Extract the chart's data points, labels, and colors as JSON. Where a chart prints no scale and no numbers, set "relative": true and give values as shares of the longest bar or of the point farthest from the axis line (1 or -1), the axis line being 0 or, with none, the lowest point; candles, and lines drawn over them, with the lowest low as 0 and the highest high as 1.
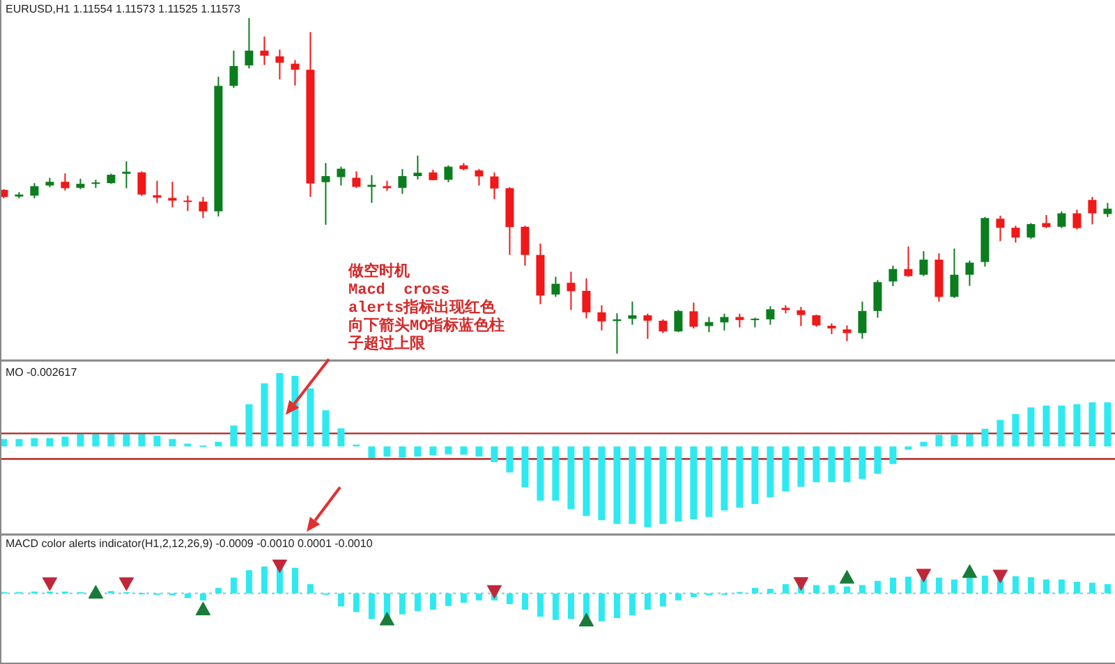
{
  "chart_data": [
    {
      "type": "candlestick",
      "title": "EURUSD,H1  1.11554 1.11573 1.11525 1.11573",
      "relative": true,
      "annotations": [
        "做空时机\nMacd  cross\nalerts指标出现红色向下箭头MO指标蓝色柱子超过上限"
      ],
      "categories": [
        null,
        null,
        null,
        null,
        null,
        null,
        null,
        null,
        null,
        null,
        null,
        null,
        null,
        null,
        null,
        null,
        null,
        null,
        null,
        null,
        null,
        null,
        null,
        null,
        null,
        null,
        null,
        null,
        null,
        null,
        null,
        null,
        null,
        null,
        null,
        null,
        null,
        null,
        null,
        null,
        null,
        null,
        null,
        null,
        null,
        null,
        null,
        null,
        null,
        null,
        null,
        null,
        null,
        null,
        null,
        null,
        null,
        null,
        null,
        null,
        null,
        null,
        null,
        null,
        null,
        null,
        null,
        null,
        null,
        null,
        null,
        null,
        null
      ],
      "ohlc": [
        [
          0.488,
          0.49,
          0.463,
          0.467
        ],
        [
          0.468,
          0.481,
          0.463,
          0.474
        ],
        [
          0.471,
          0.508,
          0.463,
          0.499
        ],
        [
          0.501,
          0.524,
          0.496,
          0.512
        ],
        [
          0.512,
          0.537,
          0.486,
          0.493
        ],
        [
          0.494,
          0.521,
          0.49,
          0.506
        ],
        [
          0.506,
          0.518,
          0.494,
          0.51
        ],
        [
          0.508,
          0.536,
          0.506,
          0.533
        ],
        [
          0.536,
          0.573,
          0.493,
          0.542
        ],
        [
          0.54,
          0.543,
          0.47,
          0.474
        ],
        [
          0.472,
          0.515,
          0.449,
          0.465
        ],
        [
          0.464,
          0.512,
          0.436,
          0.456
        ],
        [
          0.456,
          0.471,
          0.425,
          0.452
        ],
        [
          0.453,
          0.467,
          0.404,
          0.424
        ],
        [
          0.424,
          0.825,
          0.409,
          0.798
        ],
        [
          0.798,
          0.903,
          0.792,
          0.857
        ],
        [
          0.859,
          1.0,
          0.85,
          0.903
        ],
        [
          0.903,
          0.945,
          0.86,
          0.888
        ],
        [
          0.886,
          0.906,
          0.817,
          0.867
        ],
        [
          0.864,
          0.875,
          0.799,
          0.846
        ],
        [
          0.846,
          0.958,
          0.467,
          0.507
        ],
        [
          0.511,
          0.568,
          0.384,
          0.529
        ],
        [
          0.526,
          0.557,
          0.501,
          0.551
        ],
        [
          0.524,
          0.543,
          0.494,
          0.497
        ],
        [
          0.497,
          0.532,
          0.449,
          0.503
        ],
        [
          0.499,
          0.515,
          0.485,
          0.493
        ],
        [
          0.494,
          0.55,
          0.476,
          0.529
        ],
        [
          0.529,
          0.59,
          0.519,
          0.539
        ],
        [
          0.54,
          0.548,
          0.517,
          0.517
        ],
        [
          0.518,
          0.561,
          0.511,
          0.557
        ],
        [
          0.561,
          0.568,
          0.546,
          0.55
        ],
        [
          0.546,
          0.55,
          0.501,
          0.528
        ],
        [
          0.528,
          0.54,
          0.46,
          0.492
        ],
        [
          0.493,
          0.496,
          0.294,
          0.377
        ],
        [
          0.378,
          0.381,
          0.262,
          0.294
        ],
        [
          0.294,
          0.328,
          0.147,
          0.173
        ],
        [
          0.176,
          0.229,
          0.169,
          0.208
        ],
        [
          0.211,
          0.244,
          0.13,
          0.186
        ],
        [
          0.187,
          0.224,
          0.105,
          0.123
        ],
        [
          0.123,
          0.144,
          0.069,
          0.096
        ],
        [
          0.097,
          0.12,
          0,
          0.102
        ],
        [
          0.104,
          0.155,
          0.086,
          0.114
        ],
        [
          0.114,
          0.119,
          0.044,
          0.098
        ],
        [
          0.098,
          0.102,
          0.061,
          0.066
        ],
        [
          0.066,
          0.13,
          0.064,
          0.127
        ],
        [
          0.126,
          0.152,
          0.075,
          0.08
        ],
        [
          0.082,
          0.109,
          0.064,
          0.094
        ],
        [
          0.093,
          0.119,
          0.069,
          0.109
        ],
        [
          0.109,
          0.119,
          0.078,
          0.1
        ],
        [
          0.1,
          0.107,
          0.078,
          0.104
        ],
        [
          0.102,
          0.141,
          0.086,
          0.132
        ],
        [
          0.136,
          0.144,
          0.12,
          0.13
        ],
        [
          0.129,
          0.139,
          0.082,
          0.115
        ],
        [
          0.114,
          0.116,
          0.08,
          0.084
        ],
        [
          0.083,
          0.09,
          0.058,
          0.075
        ],
        [
          0.072,
          0.084,
          0.037,
          0.061
        ],
        [
          0.061,
          0.155,
          0.044,
          0.127
        ],
        [
          0.127,
          0.219,
          0.107,
          0.213
        ],
        [
          0.215,
          0.262,
          0.201,
          0.252
        ],
        [
          0.252,
          0.319,
          0.229,
          0.231
        ],
        [
          0.235,
          0.305,
          0.231,
          0.28
        ],
        [
          0.28,
          0.299,
          0.155,
          0.169
        ],
        [
          0.169,
          0.313,
          0.166,
          0.235
        ],
        [
          0.235,
          0.277,
          0.202,
          0.271
        ],
        [
          0.273,
          0.407,
          0.259,
          0.404
        ],
        [
          0.402,
          0.411,
          0.335,
          0.375
        ],
        [
          0.375,
          0.381,
          0.331,
          0.346
        ],
        [
          0.346,
          0.389,
          0.342,
          0.386
        ],
        [
          0.389,
          0.413,
          0.374,
          0.377
        ],
        [
          0.378,
          0.424,
          0.374,
          0.418
        ],
        [
          0.418,
          0.429,
          0.37,
          0.374
        ],
        [
          0.458,
          0.467,
          0.385,
          0.418
        ],
        [
          0.416,
          0.449,
          0.407,
          0.432
        ]
      ],
      "colors": [
        "#f01818",
        "#0b7d1f",
        "#0b7d1f",
        "#0b7d1f",
        "#f01818",
        "#0b7d1f",
        "#0b7d1f",
        "#0b7d1f",
        "#0b7d1f",
        "#f01818",
        "#f01818",
        "#f01818",
        "#f01818",
        "#f01818",
        "#0b7d1f",
        "#0b7d1f",
        "#0b7d1f",
        "#f01818",
        "#f01818",
        "#f01818",
        "#f01818",
        "#0b7d1f",
        "#0b7d1f",
        "#f01818",
        "#0b7d1f",
        "#f01818",
        "#0b7d1f",
        "#0b7d1f",
        "#f01818",
        "#0b7d1f",
        "#f01818",
        "#f01818",
        "#f01818",
        "#f01818",
        "#f01818",
        "#f01818",
        "#0b7d1f",
        "#f01818",
        "#f01818",
        "#f01818",
        "#0b7d1f",
        "#0b7d1f",
        "#f01818",
        "#f01818",
        "#0b7d1f",
        "#f01818",
        "#0b7d1f",
        "#0b7d1f",
        "#f01818",
        "#0b7d1f",
        "#0b7d1f",
        "#f01818",
        "#f01818",
        "#f01818",
        "#f01818",
        "#f01818",
        "#0b7d1f",
        "#0b7d1f",
        "#0b7d1f",
        "#f01818",
        "#0b7d1f",
        "#f01818",
        "#0b7d1f",
        "#0b7d1f",
        "#0b7d1f",
        "#f01818",
        "#f01818",
        "#0b7d1f",
        "#f01818",
        "#0b7d1f",
        "#f01818",
        "#f01818",
        "#0b7d1f"
      ]
    },
    {
      "type": "bar",
      "title": "MO -0.002617",
      "relative": true,
      "color": "#2ee9f0",
      "categories": [
        null,
        null,
        null,
        null,
        null,
        null,
        null,
        null,
        null,
        null,
        null,
        null,
        null,
        null,
        null,
        null,
        null,
        null,
        null,
        null,
        null,
        null,
        null,
        null,
        null,
        null,
        null,
        null,
        null,
        null,
        null,
        null,
        null,
        null,
        null,
        null,
        null,
        null,
        null,
        null,
        null,
        null,
        null,
        null,
        null,
        null,
        null,
        null,
        null,
        null,
        null,
        null,
        null,
        null,
        null,
        null,
        null,
        null,
        null,
        null,
        null,
        null,
        null,
        null,
        null,
        null,
        null,
        null,
        null,
        null,
        null,
        null,
        null
      ],
      "values": [
        0.092,
        0.092,
        0.103,
        0.103,
        0.121,
        0.149,
        0.149,
        0.149,
        0.149,
        0.149,
        0.132,
        0.092,
        0.034,
        0.011,
        0.057,
        0.259,
        0.523,
        0.782,
        0.908,
        0.874,
        0.718,
        0.448,
        0.224,
        0.023,
        -0.144,
        -0.126,
        -0.138,
        -0.126,
        -0.109,
        -0.098,
        -0.103,
        -0.126,
        -0.195,
        -0.322,
        -0.506,
        -0.672,
        -0.672,
        -0.776,
        -0.862,
        -0.914,
        -0.96,
        -0.96,
        -1,
        -0.96,
        -0.931,
        -0.902,
        -0.874,
        -0.793,
        -0.759,
        -0.713,
        -0.632,
        -0.557,
        -0.5,
        -0.443,
        -0.443,
        -0.443,
        -0.402,
        -0.339,
        -0.218,
        -0.04,
        0.057,
        0.144,
        0.144,
        0.149,
        0.218,
        0.328,
        0.402,
        0.483,
        0.506,
        0.506,
        0.523,
        0.546,
        0.546
      ],
      "ref_lines": [
        {
          "axis": "y",
          "value": 0.161,
          "color": "#b83a3a"
        },
        {
          "axis": "y",
          "value": -0.155,
          "color": "#b83a3a"
        }
      ]
    },
    {
      "type": "bar",
      "title": "MACD color alerts indicator(H1,2,12,26,9) -0.0009 -0.0010 0.0001 -0.0010",
      "relative": true,
      "categories": [
        null,
        null,
        null,
        null,
        null,
        null,
        null,
        null,
        null,
        null,
        null,
        null,
        null,
        null,
        null,
        null,
        null,
        null,
        null,
        null,
        null,
        null,
        null,
        null,
        null,
        null,
        null,
        null,
        null,
        null,
        null,
        null,
        null,
        null,
        null,
        null,
        null,
        null,
        null,
        null,
        null,
        null,
        null,
        null,
        null,
        null,
        null,
        null,
        null,
        null,
        null,
        null,
        null,
        null,
        null,
        null,
        null,
        null,
        null,
        null,
        null,
        null,
        null,
        null,
        null,
        null,
        null,
        null,
        null,
        null,
        null,
        null,
        null
      ],
      "ref_lines": [
        {
          "axis": "y",
          "value": 0,
          "color": "#6fd0d8",
          "line_style": "dotted"
        }
      ],
      "series": [
        {
          "type": "bar",
          "color": "#2ee9f0",
          "values": [
            0.048,
            0.048,
            0.065,
            0.065,
            0.065,
            0.048,
            0.032,
            0.081,
            0.048,
            0.016,
            -0.032,
            -0.065,
            -0.161,
            -0.242,
            0.194,
            0.548,
            0.806,
            0.935,
            1,
            0.887,
            0.323,
            -0.048,
            -0.452,
            -0.645,
            -0.887,
            -0.887,
            -0.726,
            -0.613,
            -0.565,
            -0.435,
            -0.323,
            -0.242,
            -0.242,
            -0.371,
            -0.565,
            -0.806,
            -0.919,
            -0.887,
            -0.968,
            -0.968,
            -0.855,
            -0.758,
            -0.565,
            -0.452,
            -0.242,
            -0.129,
            -0.065,
            -0.016,
            0.048,
            0.194,
            0.161,
            0.323,
            0.355,
            0.29,
            0.29,
            0.242,
            0.29,
            0.435,
            0.548,
            0.581,
            0.597,
            0.548,
            0.484,
            0.565,
            0.613,
            0.645,
            0.597,
            0.565,
            0.484,
            0.484,
            0.403,
            0.371,
            0.323
          ]
        },
        {
          "type": "scatter",
          "color": "#c0283a",
          "marker": "triangle",
          "values": [
            null,
            null,
            null,
            0.35,
            null,
            null,
            null,
            null,
            0.35,
            null,
            null,
            null,
            null,
            null,
            null,
            null,
            null,
            null,
            0.968,
            null,
            null,
            null,
            null,
            null,
            null,
            null,
            null,
            null,
            null,
            null,
            null,
            null,
            0.08,
            null,
            null,
            null,
            null,
            null,
            null,
            null,
            null,
            null,
            null,
            null,
            null,
            null,
            null,
            null,
            null,
            null,
            null,
            null,
            0.355,
            null,
            null,
            null,
            null,
            null,
            null,
            null,
            0.645,
            null,
            null,
            null,
            null,
            0.613,
            null,
            null,
            null,
            null,
            null,
            null,
            null
          ]
        },
        {
          "type": "scatter",
          "color": "#1a7a3a",
          "marker": "triangle",
          "values": [
            null,
            null,
            null,
            null,
            null,
            null,
            0.032,
            null,
            null,
            null,
            null,
            null,
            null,
            -0.55,
            null,
            null,
            null,
            null,
            null,
            null,
            null,
            null,
            null,
            null,
            null,
            -0.903,
            null,
            null,
            null,
            null,
            null,
            null,
            null,
            null,
            null,
            null,
            null,
            null,
            -0.935,
            null,
            null,
            null,
            null,
            null,
            null,
            null,
            null,
            null,
            null,
            null,
            null,
            null,
            null,
            null,
            null,
            0.55,
            null,
            null,
            null,
            null,
            null,
            null,
            null,
            0.75,
            null,
            null,
            null,
            null,
            null,
            null,
            null,
            null,
            null
          ]
        }
      ]
    }
  ]
}
